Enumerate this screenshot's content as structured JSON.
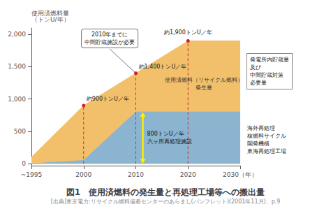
{
  "chart_data": {
    "type": "area",
    "title": "図1　使用済燃料の発生量と再処理工場等への搬出量",
    "subtitle": "[出典]東京電力:リサイクル燃料備蓄センターのあらまし(パンフレット)(2001年11月)、p.9",
    "ylabel": "使用済燃料量\n（トンU/年）",
    "categories": [
      "~1995",
      "2000",
      "2010",
      "2020",
      "2030（年）"
    ],
    "series": [
      {
        "name": "使用済燃料（リサイクル燃料）\n発生量",
        "color": "#F2C06A",
        "values": [
          100,
          900,
          1400,
          1900,
          1900
        ]
      },
      {
        "color": "#8BB4D0",
        "values": [
          0,
          50,
          800,
          800,
          800
        ]
      }
    ],
    "ylim": [
      -30,
      2100
    ],
    "yticks": [
      0,
      500,
      1000,
      1500,
      2000
    ],
    "grid": false,
    "annotations": [
      {
        "text": "約900トンU／年",
        "x": "2000",
        "y": 900
      },
      {
        "text": "約1,400トンU／年",
        "x": "2010",
        "y": 1400
      },
      {
        "text": "約1,900トンU／年",
        "x": "2020",
        "y": 1900
      },
      {
        "text": "2010年までに\n中間貯蔵施設が必要",
        "x": "2010",
        "y": 1400
      },
      {
        "text": "800トンU／年\n六ヶ所再処理施設",
        "x": "2010",
        "y": 800,
        "color": "#FFEE00"
      },
      {
        "text": "発電所内貯蔵量\n及び\n中間貯蔵対策\n必要量"
      },
      {
        "text": "海外再処理\n核燃料サイクル\n開発機構\n東海再処理工場"
      }
    ]
  }
}
